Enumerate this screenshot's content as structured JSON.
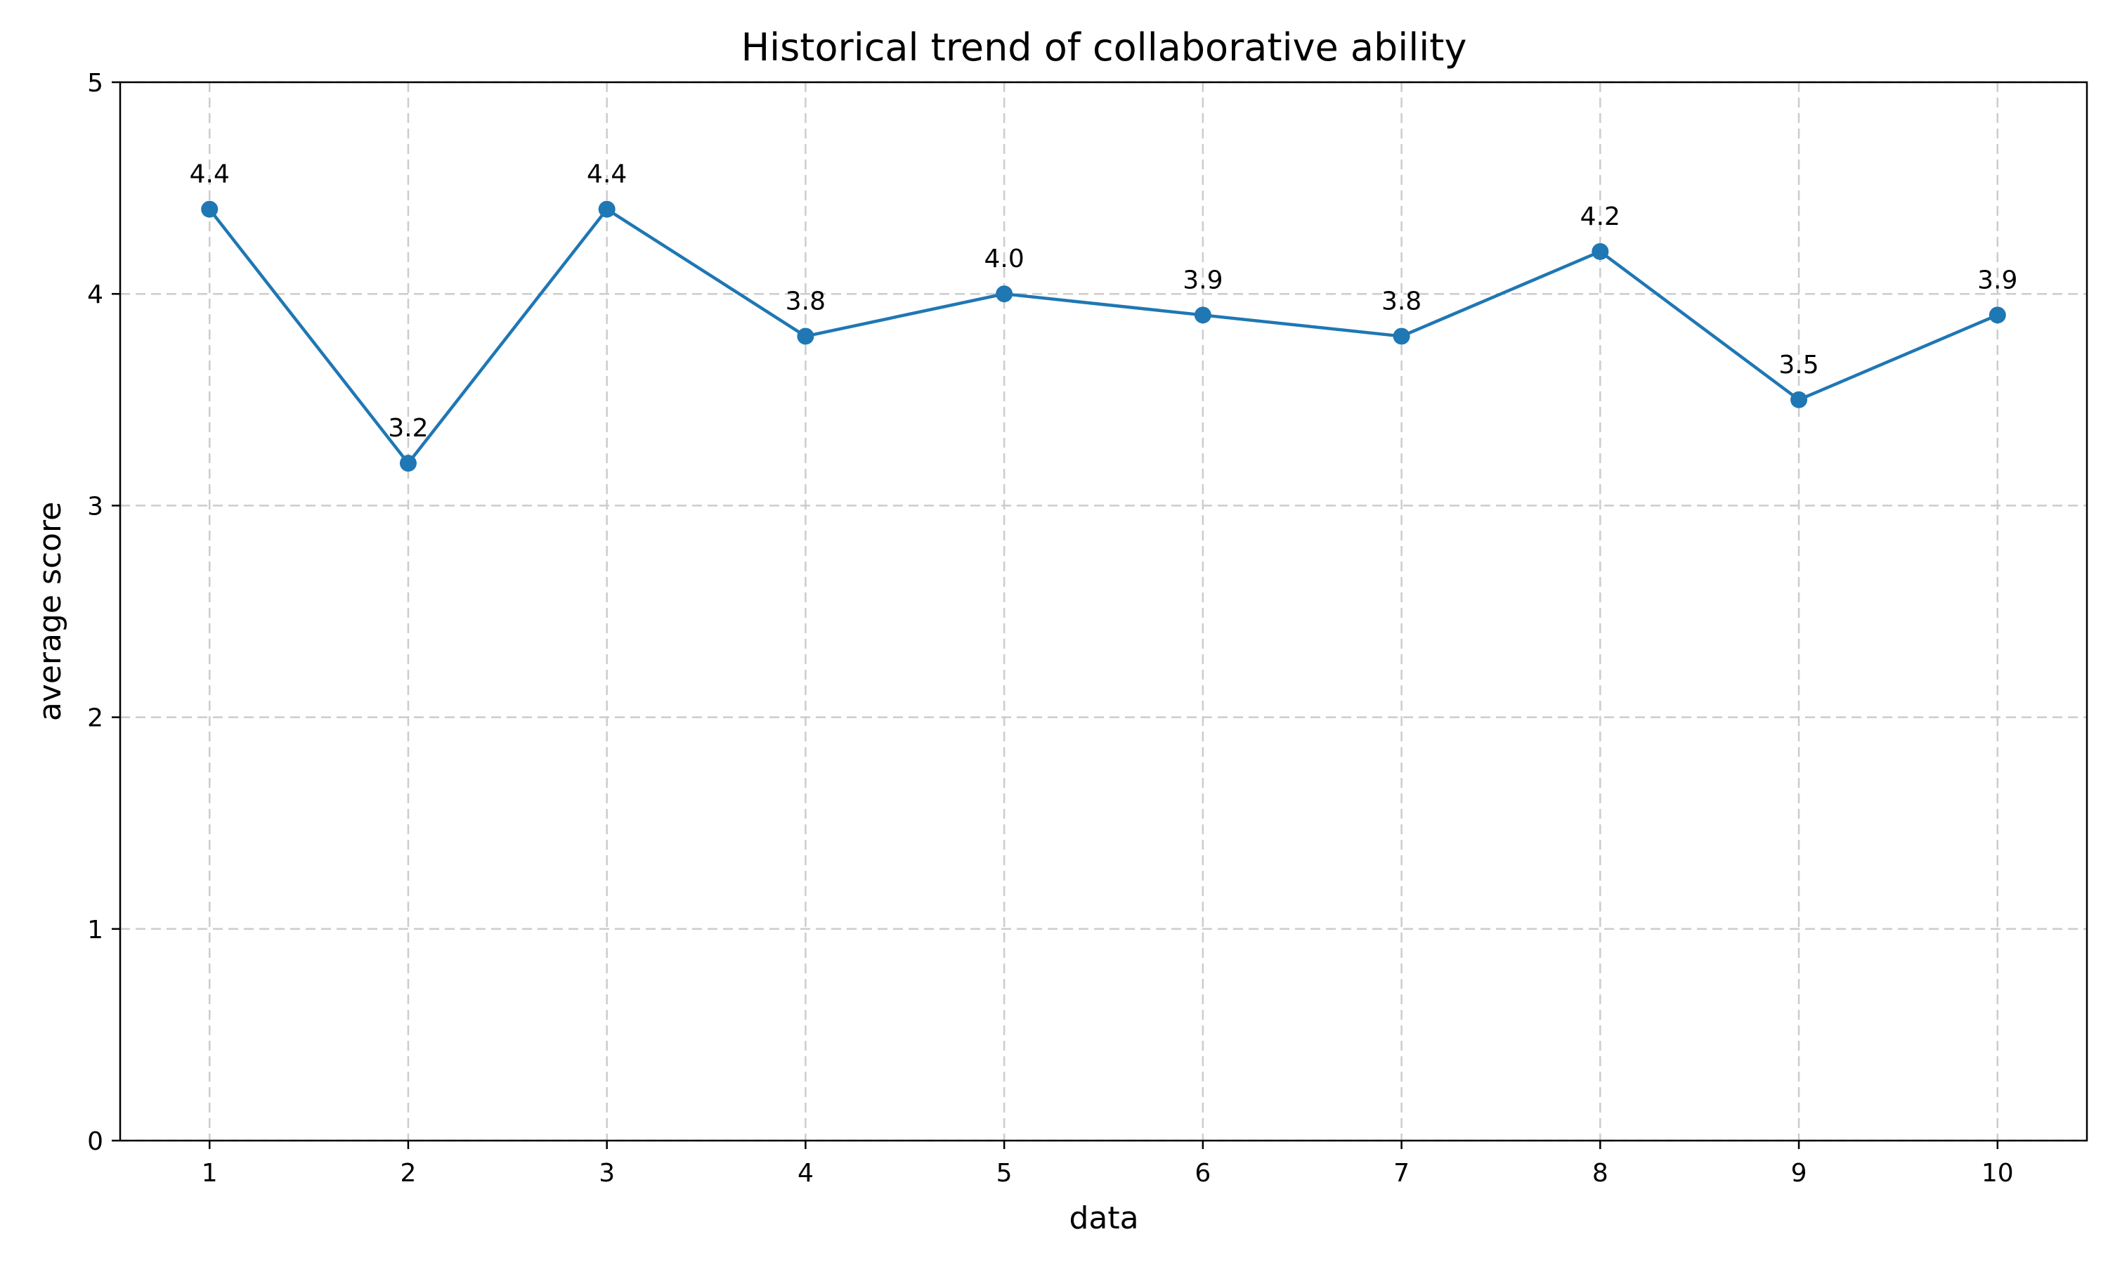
{
  "chart_data": {
    "type": "line",
    "title": "Historical trend of collaborative ability",
    "xlabel": "data",
    "ylabel": "average score",
    "x": [
      1,
      2,
      3,
      4,
      5,
      6,
      7,
      8,
      9,
      10
    ],
    "series": [
      {
        "values": [
          4.4,
          3.2,
          4.4,
          3.8,
          4.0,
          3.9,
          3.8,
          4.2,
          3.5,
          3.9
        ],
        "color": "#1f77b4"
      }
    ],
    "data_labels": [
      "4.4",
      "3.2",
      "4.4",
      "3.8",
      "4.0",
      "3.9",
      "3.8",
      "4.2",
      "3.5",
      "3.9"
    ],
    "xlim": [
      0.55,
      10.45
    ],
    "ylim": [
      0,
      5
    ],
    "xticks": [
      1,
      2,
      3,
      4,
      5,
      6,
      7,
      8,
      9,
      10
    ],
    "yticks": [
      0,
      1,
      2,
      3,
      4,
      5
    ],
    "grid": true,
    "marker": "circle",
    "line_color": "#1f77b4"
  }
}
